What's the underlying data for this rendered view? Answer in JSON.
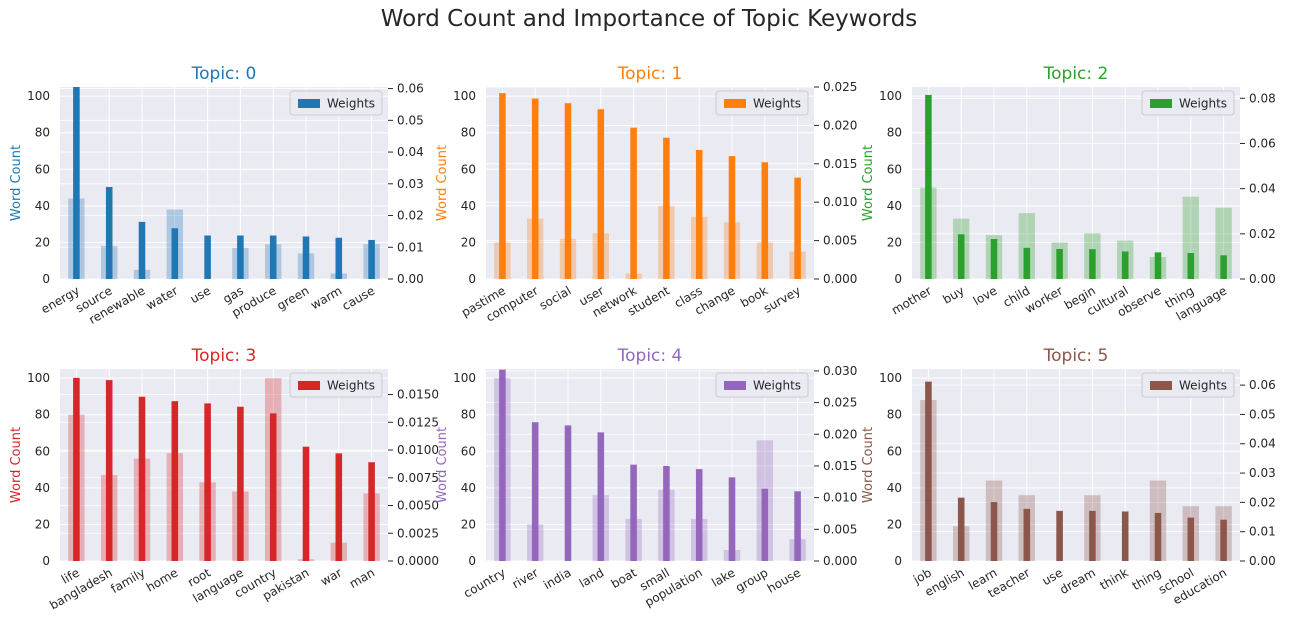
{
  "figure": {
    "title": "Word Count and Importance of Topic Keywords"
  },
  "chart_data": [
    {
      "type": "bar",
      "title": "Topic: 0",
      "color": "#1f77b4",
      "ylabel_left": "Word Count",
      "legend_label": "Weights",
      "legend_position": "top-right",
      "grid": true,
      "categories": [
        "energy",
        "source",
        "renewable",
        "water",
        "use",
        "gas",
        "produce",
        "green",
        "warm",
        "cause"
      ],
      "series": [
        {
          "name": "Word Count",
          "axis": "left",
          "values": [
            44,
            18,
            5,
            38,
            0,
            17,
            19,
            14,
            3,
            19
          ]
        },
        {
          "name": "Weights",
          "axis": "right",
          "values": [
            0.0605,
            0.029,
            0.018,
            0.016,
            0.0137,
            0.0137,
            0.0137,
            0.0134,
            0.013,
            0.0123
          ]
        }
      ],
      "ylim_left": [
        0,
        105
      ],
      "yticks_left": [
        0,
        20,
        40,
        60,
        80,
        100
      ],
      "ylim_right": [
        0,
        0.0605
      ],
      "yticks_right": [
        0.0,
        0.01,
        0.02,
        0.03,
        0.04,
        0.05,
        0.06
      ],
      "right_tick_decimals": 2
    },
    {
      "type": "bar",
      "title": "Topic: 1",
      "color": "#ff7f0e",
      "ylabel_left": "Word Count",
      "legend_label": "Weights",
      "legend_position": "top-right",
      "grid": true,
      "categories": [
        "pastime",
        "computer",
        "social",
        "user",
        "network",
        "student",
        "class",
        "change",
        "book",
        "survey"
      ],
      "series": [
        {
          "name": "Word Count",
          "axis": "left",
          "values": [
            20,
            33,
            22,
            25,
            3,
            40,
            34,
            31,
            20,
            15
          ]
        },
        {
          "name": "Weights",
          "axis": "right",
          "values": [
            0.0242,
            0.0235,
            0.0229,
            0.0221,
            0.0197,
            0.0184,
            0.0168,
            0.016,
            0.0152,
            0.0132
          ]
        }
      ],
      "ylim_left": [
        0,
        105
      ],
      "yticks_left": [
        0,
        20,
        40,
        60,
        80,
        100
      ],
      "ylim_right": [
        0,
        0.025
      ],
      "yticks_right": [
        0.0,
        0.005,
        0.01,
        0.015,
        0.02,
        0.025
      ],
      "right_tick_decimals": 3
    },
    {
      "type": "bar",
      "title": "Topic: 2",
      "color": "#2ca02c",
      "ylabel_left": "Word Count",
      "legend_label": "Weights",
      "legend_position": "top-right",
      "grid": true,
      "categories": [
        "mother",
        "buy",
        "love",
        "child",
        "worker",
        "begin",
        "cultural",
        "observe",
        "thing",
        "language"
      ],
      "series": [
        {
          "name": "Word Count",
          "axis": "left",
          "values": [
            50,
            33,
            24,
            36,
            20,
            25,
            21,
            12,
            45,
            39
          ]
        },
        {
          "name": "Weights",
          "axis": "right",
          "values": [
            0.0815,
            0.0198,
            0.0177,
            0.0138,
            0.0133,
            0.0132,
            0.0122,
            0.0118,
            0.0115,
            0.0105
          ]
        }
      ],
      "ylim_left": [
        0,
        105
      ],
      "yticks_left": [
        0,
        20,
        40,
        60,
        80,
        100
      ],
      "ylim_right": [
        0,
        0.085
      ],
      "yticks_right": [
        0.0,
        0.02,
        0.04,
        0.06,
        0.08
      ],
      "right_tick_decimals": 2
    },
    {
      "type": "bar",
      "title": "Topic: 3",
      "color": "#d62728",
      "ylabel_left": "Word Count",
      "legend_label": "Weights",
      "legend_position": "top-right",
      "grid": true,
      "categories": [
        "life",
        "bangladesh",
        "family",
        "home",
        "root",
        "language",
        "country",
        "pakistan",
        "war",
        "man"
      ],
      "series": [
        {
          "name": "Word Count",
          "axis": "left",
          "values": [
            80,
            47,
            56,
            59,
            43,
            38,
            100,
            1,
            10,
            37
          ]
        },
        {
          "name": "Weights",
          "axis": "right",
          "values": [
            0.0165,
            0.0163,
            0.0148,
            0.0144,
            0.0142,
            0.0139,
            0.0133,
            0.0103,
            0.0097,
            0.0089
          ]
        }
      ],
      "ylim_left": [
        0,
        105
      ],
      "yticks_left": [
        0,
        20,
        40,
        60,
        80,
        100
      ],
      "ylim_right": [
        0,
        0.0173
      ],
      "yticks_right": [
        0.0,
        0.0025,
        0.005,
        0.0075,
        0.01,
        0.0125,
        0.015
      ],
      "right_tick_decimals": 4
    },
    {
      "type": "bar",
      "title": "Topic: 4",
      "color": "#9467bd",
      "ylabel_left": "Word Count",
      "legend_label": "Weights",
      "legend_position": "top-right",
      "grid": true,
      "categories": [
        "country",
        "river",
        "india",
        "land",
        "boat",
        "small",
        "population",
        "lake",
        "group",
        "house"
      ],
      "series": [
        {
          "name": "Word Count",
          "axis": "left",
          "values": [
            100,
            20,
            0,
            36,
            23,
            39,
            23,
            6,
            66,
            12
          ]
        },
        {
          "name": "Weights",
          "axis": "right",
          "values": [
            0.0302,
            0.0219,
            0.0214,
            0.0203,
            0.0152,
            0.015,
            0.0145,
            0.0132,
            0.0114,
            0.011
          ]
        }
      ],
      "ylim_left": [
        0,
        105
      ],
      "yticks_left": [
        0,
        20,
        40,
        60,
        80,
        100
      ],
      "ylim_right": [
        0,
        0.0303
      ],
      "yticks_right": [
        0.0,
        0.005,
        0.01,
        0.015,
        0.02,
        0.025,
        0.03
      ],
      "right_tick_decimals": 3
    },
    {
      "type": "bar",
      "title": "Topic: 5",
      "color": "#8c564b",
      "ylabel_left": "Word Count",
      "legend_label": "Weights",
      "legend_position": "top-right",
      "grid": true,
      "categories": [
        "job",
        "english",
        "learn",
        "teacher",
        "use",
        "dream",
        "think",
        "thing",
        "school",
        "education"
      ],
      "series": [
        {
          "name": "Word Count",
          "axis": "left",
          "values": [
            88,
            19,
            44,
            36,
            0,
            36,
            0,
            44,
            30,
            30
          ]
        },
        {
          "name": "Weights",
          "axis": "right",
          "values": [
            0.0612,
            0.0216,
            0.0201,
            0.0178,
            0.0171,
            0.0171,
            0.0169,
            0.0164,
            0.0148,
            0.0141
          ]
        }
      ],
      "ylim_left": [
        0,
        105
      ],
      "yticks_left": [
        0,
        20,
        40,
        60,
        80,
        100
      ],
      "ylim_right": [
        0,
        0.0655
      ],
      "yticks_right": [
        0.0,
        0.01,
        0.02,
        0.03,
        0.04,
        0.05,
        0.06
      ],
      "right_tick_decimals": 2
    }
  ]
}
